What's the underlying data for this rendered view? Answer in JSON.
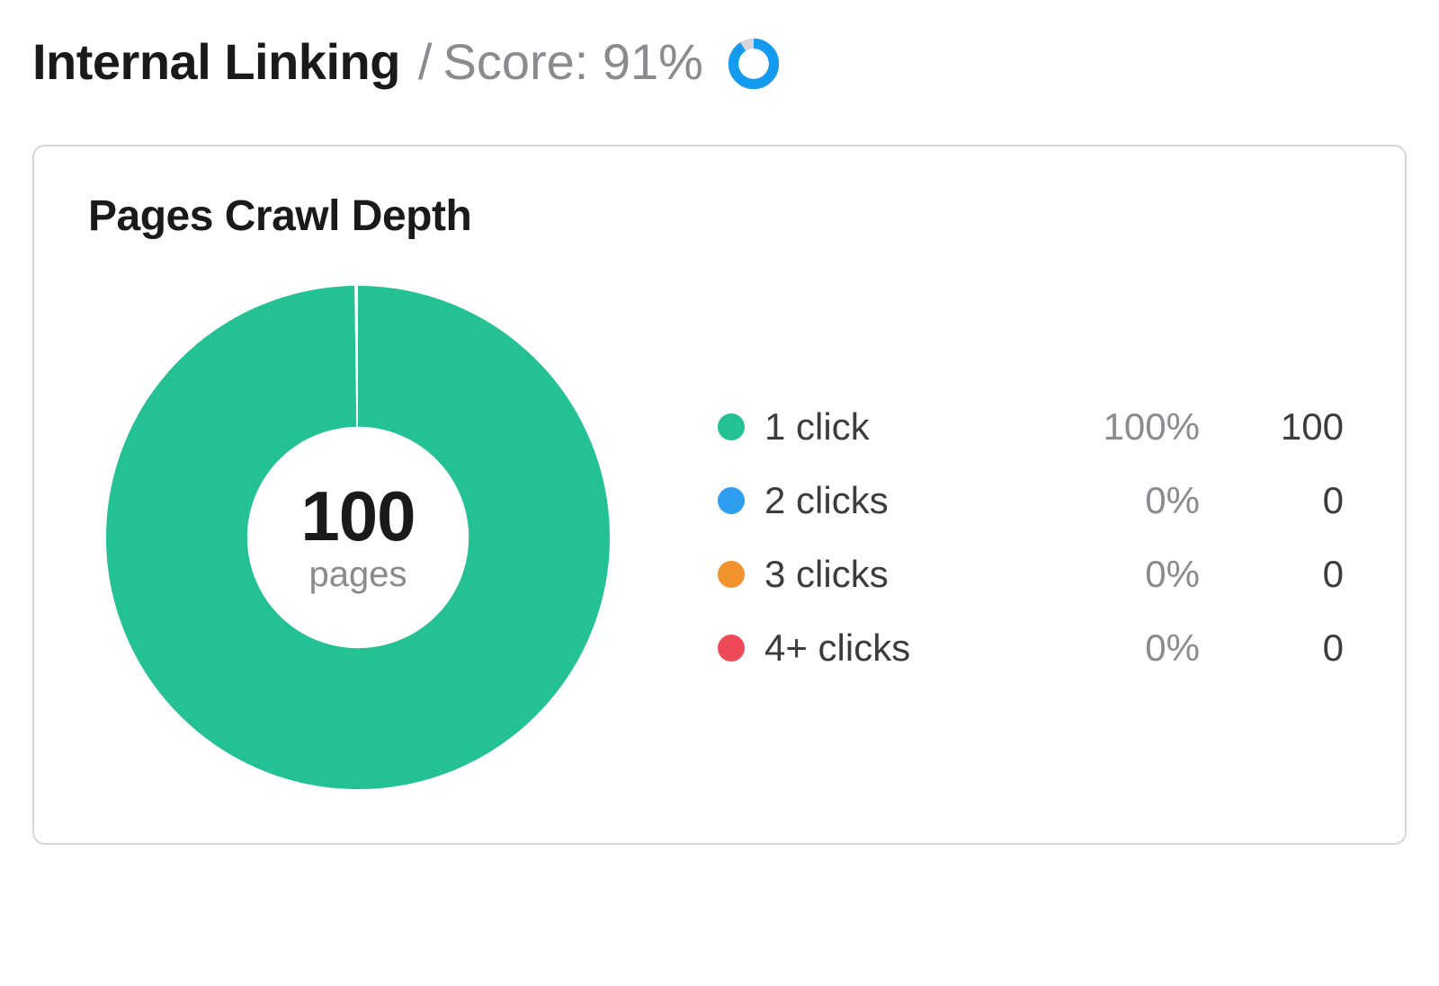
{
  "header": {
    "title": "Internal Linking",
    "score_label": "Score: 91%",
    "score_pct": 91,
    "score_donut": {
      "fg_color": "#149bf0",
      "track_color": "#d6d6db",
      "thickness": 12
    }
  },
  "card": {
    "title": "Pages Crawl Depth",
    "donut": {
      "total_value": "100",
      "total_label": "pages",
      "thickness_ratio": 0.28,
      "dominant_index": 0
    },
    "series": [
      {
        "label": "1 click",
        "pct": "100%",
        "count": "100",
        "color": "#23c194"
      },
      {
        "label": "2 clicks",
        "pct": "0%",
        "count": "0",
        "color": "#2e9ef0"
      },
      {
        "label": "3 clicks",
        "pct": "0%",
        "count": "0",
        "color": "#f2932e"
      },
      {
        "label": "4+ clicks",
        "pct": "0%",
        "count": "0",
        "color": "#ef4a58"
      }
    ]
  },
  "palette": {
    "text": "#1a1a1a",
    "muted": "#8a8a8f",
    "border": "#d6d6db",
    "background": "#ffffff"
  }
}
